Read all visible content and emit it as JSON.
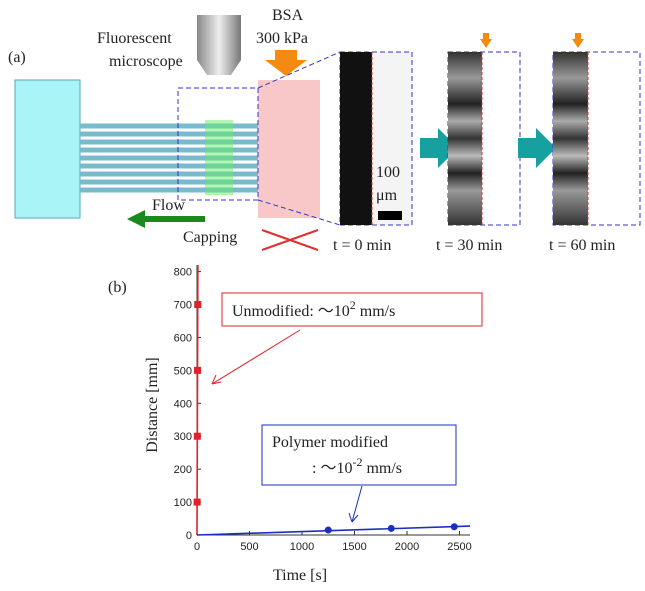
{
  "panel_a": {
    "label": "(a)",
    "microscope": [
      "Fluorescent",
      "microscope"
    ],
    "pressure": [
      "BSA",
      "300 kPa"
    ],
    "flow": "Flow",
    "capping": "Capping",
    "scale": [
      "100",
      "μm"
    ],
    "times": [
      "t = 0 min",
      "t = 30 min",
      "t = 60 min"
    ]
  },
  "chart_data": {
    "type": "scatter",
    "label": "(b)",
    "xlabel": "Time [s]",
    "ylabel": "Distance [mm]",
    "xlim": [
      0,
      2600
    ],
    "ylim": [
      0,
      820
    ],
    "xticks": [
      0,
      500,
      1000,
      1500,
      2000,
      2500
    ],
    "yticks": [
      0,
      100,
      200,
      300,
      400,
      500,
      600,
      700,
      800
    ],
    "series": [
      {
        "color": "#e0202a",
        "marker": "square",
        "x": [
          1,
          3,
          5,
          7
        ],
        "values": [
          100,
          300,
          500,
          700
        ]
      },
      {
        "color": "#e0202a",
        "marker": "line",
        "x": [
          0,
          8.2
        ],
        "values": [
          0,
          820
        ]
      },
      {
        "color": "#1a2fc0",
        "marker": "circle",
        "x": [
          1250,
          1850,
          2450
        ],
        "values": [
          15,
          20,
          25
        ]
      },
      {
        "color": "#1a2fc0",
        "marker": "line",
        "x": [
          0,
          2600
        ],
        "values": [
          0,
          27
        ]
      }
    ],
    "annotations": [
      {
        "text": "Unmodified: ～10",
        "superscript": "2",
        "unit": " mm/s",
        "color": "#e0202a"
      },
      {
        "lines": [
          "Polymer modified",
          ": ～10"
        ],
        "superscript": "-2",
        "unit": " mm/s",
        "color": "#1a2fc0"
      }
    ]
  }
}
